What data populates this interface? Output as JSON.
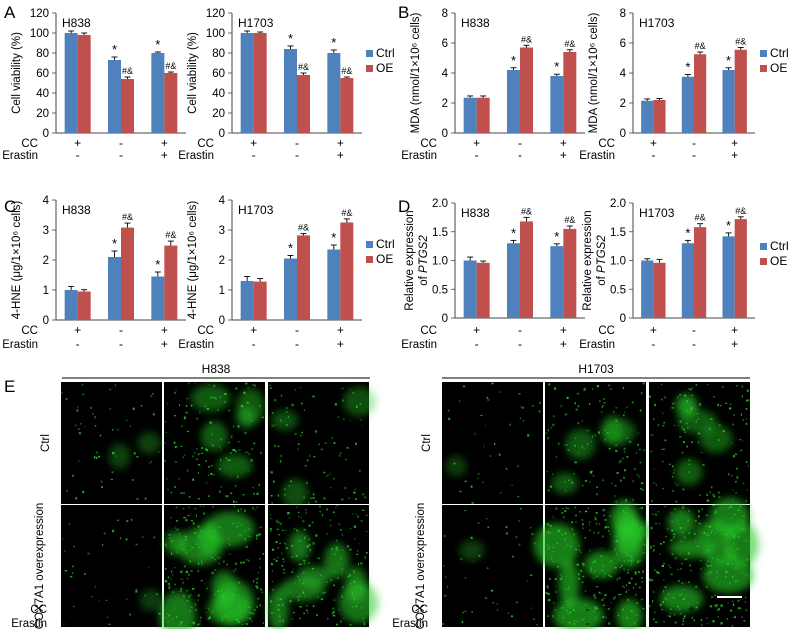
{
  "condition_rows": {
    "labels": [
      "CC",
      "Erastin"
    ],
    "cc": [
      "+",
      "-",
      "+"
    ],
    "erastin": [
      "-",
      "-",
      "+"
    ]
  },
  "legend": [
    "Ctrl",
    "OE"
  ],
  "colors": {
    "Ctrl": "#4F81BD",
    "OE": "#C0504D",
    "fluor": "#28c828"
  },
  "chart_data": [
    {
      "type": "bar",
      "panel": "A",
      "title": "H838",
      "ylabel": "Cell viability (%)",
      "ylim": [
        0,
        120
      ],
      "yticks": [
        0,
        20,
        40,
        60,
        80,
        100,
        120
      ],
      "categories": [
        "1",
        "2",
        "3"
      ],
      "series": [
        {
          "name": "Ctrl",
          "values": [
            100,
            73,
            80
          ],
          "errors": [
            2,
            3,
            1
          ]
        },
        {
          "name": "OE",
          "values": [
            98,
            54,
            60
          ],
          "errors": [
            2,
            2,
            1
          ]
        }
      ],
      "marks": {
        "Ctrl": [
          "",
          "*",
          "*"
        ],
        "OE": [
          "",
          "#&",
          "#&"
        ]
      }
    },
    {
      "type": "bar",
      "panel": "A",
      "title": "H1703",
      "ylabel": "Cell viability (%)",
      "ylim": [
        0,
        120
      ],
      "yticks": [
        0,
        20,
        40,
        60,
        80,
        100,
        120
      ],
      "categories": [
        "1",
        "2",
        "3"
      ],
      "series": [
        {
          "name": "Ctrl",
          "values": [
            100,
            84,
            80
          ],
          "errors": [
            2,
            3,
            3
          ]
        },
        {
          "name": "OE",
          "values": [
            100,
            58,
            55
          ],
          "errors": [
            1,
            2,
            1
          ]
        }
      ],
      "marks": {
        "Ctrl": [
          "",
          "*",
          "*"
        ],
        "OE": [
          "",
          "#&",
          "#&"
        ]
      }
    },
    {
      "type": "bar",
      "panel": "B",
      "title": "H838",
      "ylabel": "MDA (nmol/1×10⁶ cells)",
      "ylim": [
        0,
        8
      ],
      "yticks": [
        0,
        2,
        4,
        6,
        8
      ],
      "categories": [
        "1",
        "2",
        "3"
      ],
      "series": [
        {
          "name": "Ctrl",
          "values": [
            2.35,
            4.2,
            3.8
          ],
          "errors": [
            0.12,
            0.15,
            0.12
          ]
        },
        {
          "name": "OE",
          "values": [
            2.35,
            5.7,
            5.4
          ],
          "errors": [
            0.12,
            0.15,
            0.15
          ]
        }
      ],
      "marks": {
        "Ctrl": [
          "",
          "*",
          "*"
        ],
        "OE": [
          "",
          "#&",
          "#&"
        ]
      }
    },
    {
      "type": "bar",
      "panel": "B",
      "title": "H1703",
      "ylabel": "MDA (nmol/1×10⁶ cells)",
      "ylim": [
        0,
        8
      ],
      "yticks": [
        0,
        2,
        4,
        6,
        8
      ],
      "categories": [
        "1",
        "2",
        "3"
      ],
      "series": [
        {
          "name": "Ctrl",
          "values": [
            2.15,
            3.75,
            4.2
          ],
          "errors": [
            0.12,
            0.15,
            0.15
          ]
        },
        {
          "name": "OE",
          "values": [
            2.2,
            5.25,
            5.55
          ],
          "errors": [
            0.1,
            0.15,
            0.15
          ]
        }
      ],
      "marks": {
        "Ctrl": [
          "",
          "*",
          "*"
        ],
        "OE": [
          "",
          "#&",
          "#&"
        ]
      }
    },
    {
      "type": "bar",
      "panel": "C",
      "title": "H838",
      "ylabel": "4-HNE (μg/1×10⁶ cells)",
      "ylim": [
        0,
        4
      ],
      "yticks": [
        0,
        1,
        2,
        3,
        4
      ],
      "categories": [
        "1",
        "2",
        "3"
      ],
      "series": [
        {
          "name": "Ctrl",
          "values": [
            1.0,
            2.1,
            1.45
          ],
          "errors": [
            0.12,
            0.2,
            0.15
          ]
        },
        {
          "name": "OE",
          "values": [
            0.95,
            3.08,
            2.48
          ],
          "errors": [
            0.06,
            0.15,
            0.15
          ]
        }
      ],
      "marks": {
        "Ctrl": [
          "",
          "*",
          "*"
        ],
        "OE": [
          "",
          "#&",
          "#&"
        ]
      }
    },
    {
      "type": "bar",
      "panel": "C",
      "title": "H1703",
      "ylabel": "4-HNE (μg/1×10⁶ cells)",
      "ylim": [
        0,
        4
      ],
      "yticks": [
        0,
        1,
        2,
        3,
        4
      ],
      "categories": [
        "1",
        "2",
        "3"
      ],
      "series": [
        {
          "name": "Ctrl",
          "values": [
            1.3,
            2.05,
            2.35
          ],
          "errors": [
            0.15,
            0.1,
            0.15
          ]
        },
        {
          "name": "OE",
          "values": [
            1.28,
            2.82,
            3.25
          ],
          "errors": [
            0.1,
            0.06,
            0.12
          ]
        }
      ],
      "marks": {
        "Ctrl": [
          "",
          "*",
          "*"
        ],
        "OE": [
          "",
          "#&",
          "#&"
        ]
      }
    },
    {
      "type": "bar",
      "panel": "D",
      "title": "H838",
      "ylabel": "Relative expression",
      "ylabel2_prefix": "of ",
      "ylabel2_italic": "PTGS2",
      "ylim": [
        0,
        2
      ],
      "yticks": [
        "0",
        "0.5",
        "1.0",
        "1.5",
        "2.0"
      ],
      "categories": [
        "1",
        "2",
        "3"
      ],
      "series": [
        {
          "name": "Ctrl",
          "values": [
            1.0,
            1.3,
            1.25
          ],
          "errors": [
            0.06,
            0.05,
            0.04
          ]
        },
        {
          "name": "OE",
          "values": [
            0.96,
            1.68,
            1.55
          ],
          "errors": [
            0.03,
            0.07,
            0.05
          ]
        }
      ],
      "marks": {
        "Ctrl": [
          "",
          "*",
          "*"
        ],
        "OE": [
          "",
          "#&",
          "#&"
        ]
      }
    },
    {
      "type": "bar",
      "panel": "D",
      "title": "H1703",
      "ylabel": "Relative expression",
      "ylabel2_prefix": "of ",
      "ylabel2_italic": "PTGS2",
      "ylim": [
        0,
        2
      ],
      "yticks": [
        "0",
        "0.5",
        "1.0",
        "1.5",
        "2.0"
      ],
      "categories": [
        "1",
        "2",
        "3"
      ],
      "series": [
        {
          "name": "Ctrl",
          "values": [
            1.0,
            1.3,
            1.42
          ],
          "errors": [
            0.03,
            0.05,
            0.06
          ]
        },
        {
          "name": "OE",
          "values": [
            0.96,
            1.58,
            1.72
          ],
          "errors": [
            0.06,
            0.06,
            0.04
          ]
        }
      ],
      "marks": {
        "Ctrl": [
          "",
          "*",
          "*"
        ],
        "OE": [
          "",
          "#&",
          "#&"
        ]
      }
    }
  ],
  "micrographs": {
    "panel": "E",
    "groups": [
      "H838",
      "H1703"
    ],
    "rows": [
      "Ctrl",
      "COX7A1 overexpression"
    ],
    "intensity": [
      [
        [
          0.15,
          0.45,
          0.3
        ],
        [
          0.1,
          0.75,
          0.7
        ]
      ],
      [
        [
          0.1,
          0.4,
          0.45
        ],
        [
          0.12,
          0.85,
          0.8
        ]
      ]
    ]
  }
}
